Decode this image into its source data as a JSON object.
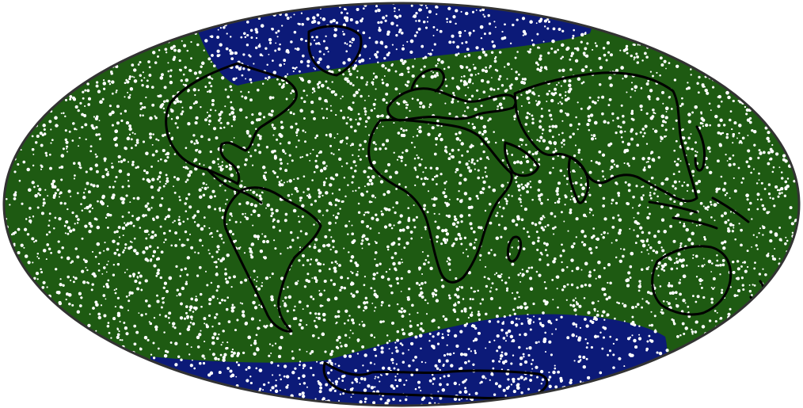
{
  "map": {
    "projection": "mollweide",
    "zones": [
      {
        "name": "north-polar-cap",
        "color": "#0c1a78"
      },
      {
        "name": "mid-latitude-band",
        "color": "#1e5a12"
      },
      {
        "name": "south-polar-cap",
        "color": "#0c1a78"
      }
    ],
    "background_color": "#ffffff",
    "coastline_color": "#000000",
    "outline_color": "#333333",
    "point_style": "dense random dots"
  }
}
